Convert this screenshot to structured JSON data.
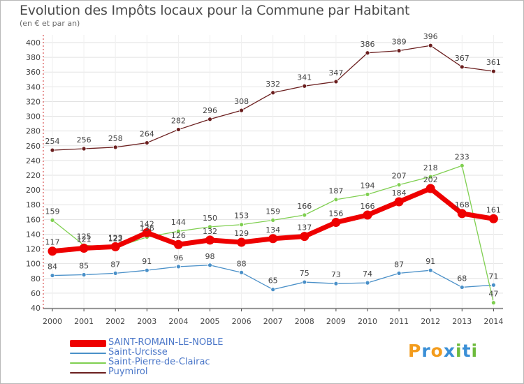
{
  "chart_data": {
    "type": "line",
    "title": "Evolution des Impôts locaux pour la Commune par Habitant",
    "subtitle": "(en € et par an)",
    "xlabel": "",
    "ylabel": "",
    "ylim": [
      40,
      400
    ],
    "yticks": [
      40,
      60,
      80,
      100,
      120,
      140,
      160,
      180,
      200,
      220,
      240,
      260,
      280,
      300,
      320,
      340,
      360,
      380,
      400
    ],
    "categories": [
      "2000",
      "2001",
      "2002",
      "2003",
      "2004",
      "2005",
      "2006",
      "2007",
      "2008",
      "2009",
      "2010",
      "2011",
      "2012",
      "2013",
      "2014"
    ],
    "series": [
      {
        "name": "Puymirol",
        "color": "#6b1f1f",
        "values": [
          254,
          256,
          258,
          264,
          282,
          296,
          308,
          332,
          341,
          347,
          386,
          389,
          396,
          367,
          361
        ]
      },
      {
        "name": "Saint-Urcisse",
        "color": "#4a90c8",
        "values": [
          84,
          85,
          87,
          91,
          96,
          98,
          88,
          65,
          75,
          73,
          74,
          87,
          91,
          68,
          71
        ]
      },
      {
        "name": "Saint-Pierre-de-Clairac",
        "color": "#7fcf50",
        "values": [
          159,
          125,
          122,
          136,
          144,
          150,
          153,
          159,
          166,
          187,
          194,
          207,
          218,
          233,
          47
        ]
      },
      {
        "name": "SAINT-ROMAIN-LE-NOBLE",
        "color": "#ee0000",
        "values": [
          117,
          121,
          123,
          142,
          126,
          132,
          129,
          134,
          137,
          156,
          166,
          184,
          202,
          168,
          161
        ]
      }
    ],
    "legend": {
      "position": "bottom-left",
      "entries": [
        "SAINT-ROMAIN-LE-NOBLE",
        "Saint-Urcisse",
        "Saint-Pierre-de-Clairac",
        "Puymirol"
      ]
    },
    "grid": true
  },
  "brand": [
    "P",
    "r",
    "o",
    "x",
    "i",
    "t",
    "i"
  ]
}
